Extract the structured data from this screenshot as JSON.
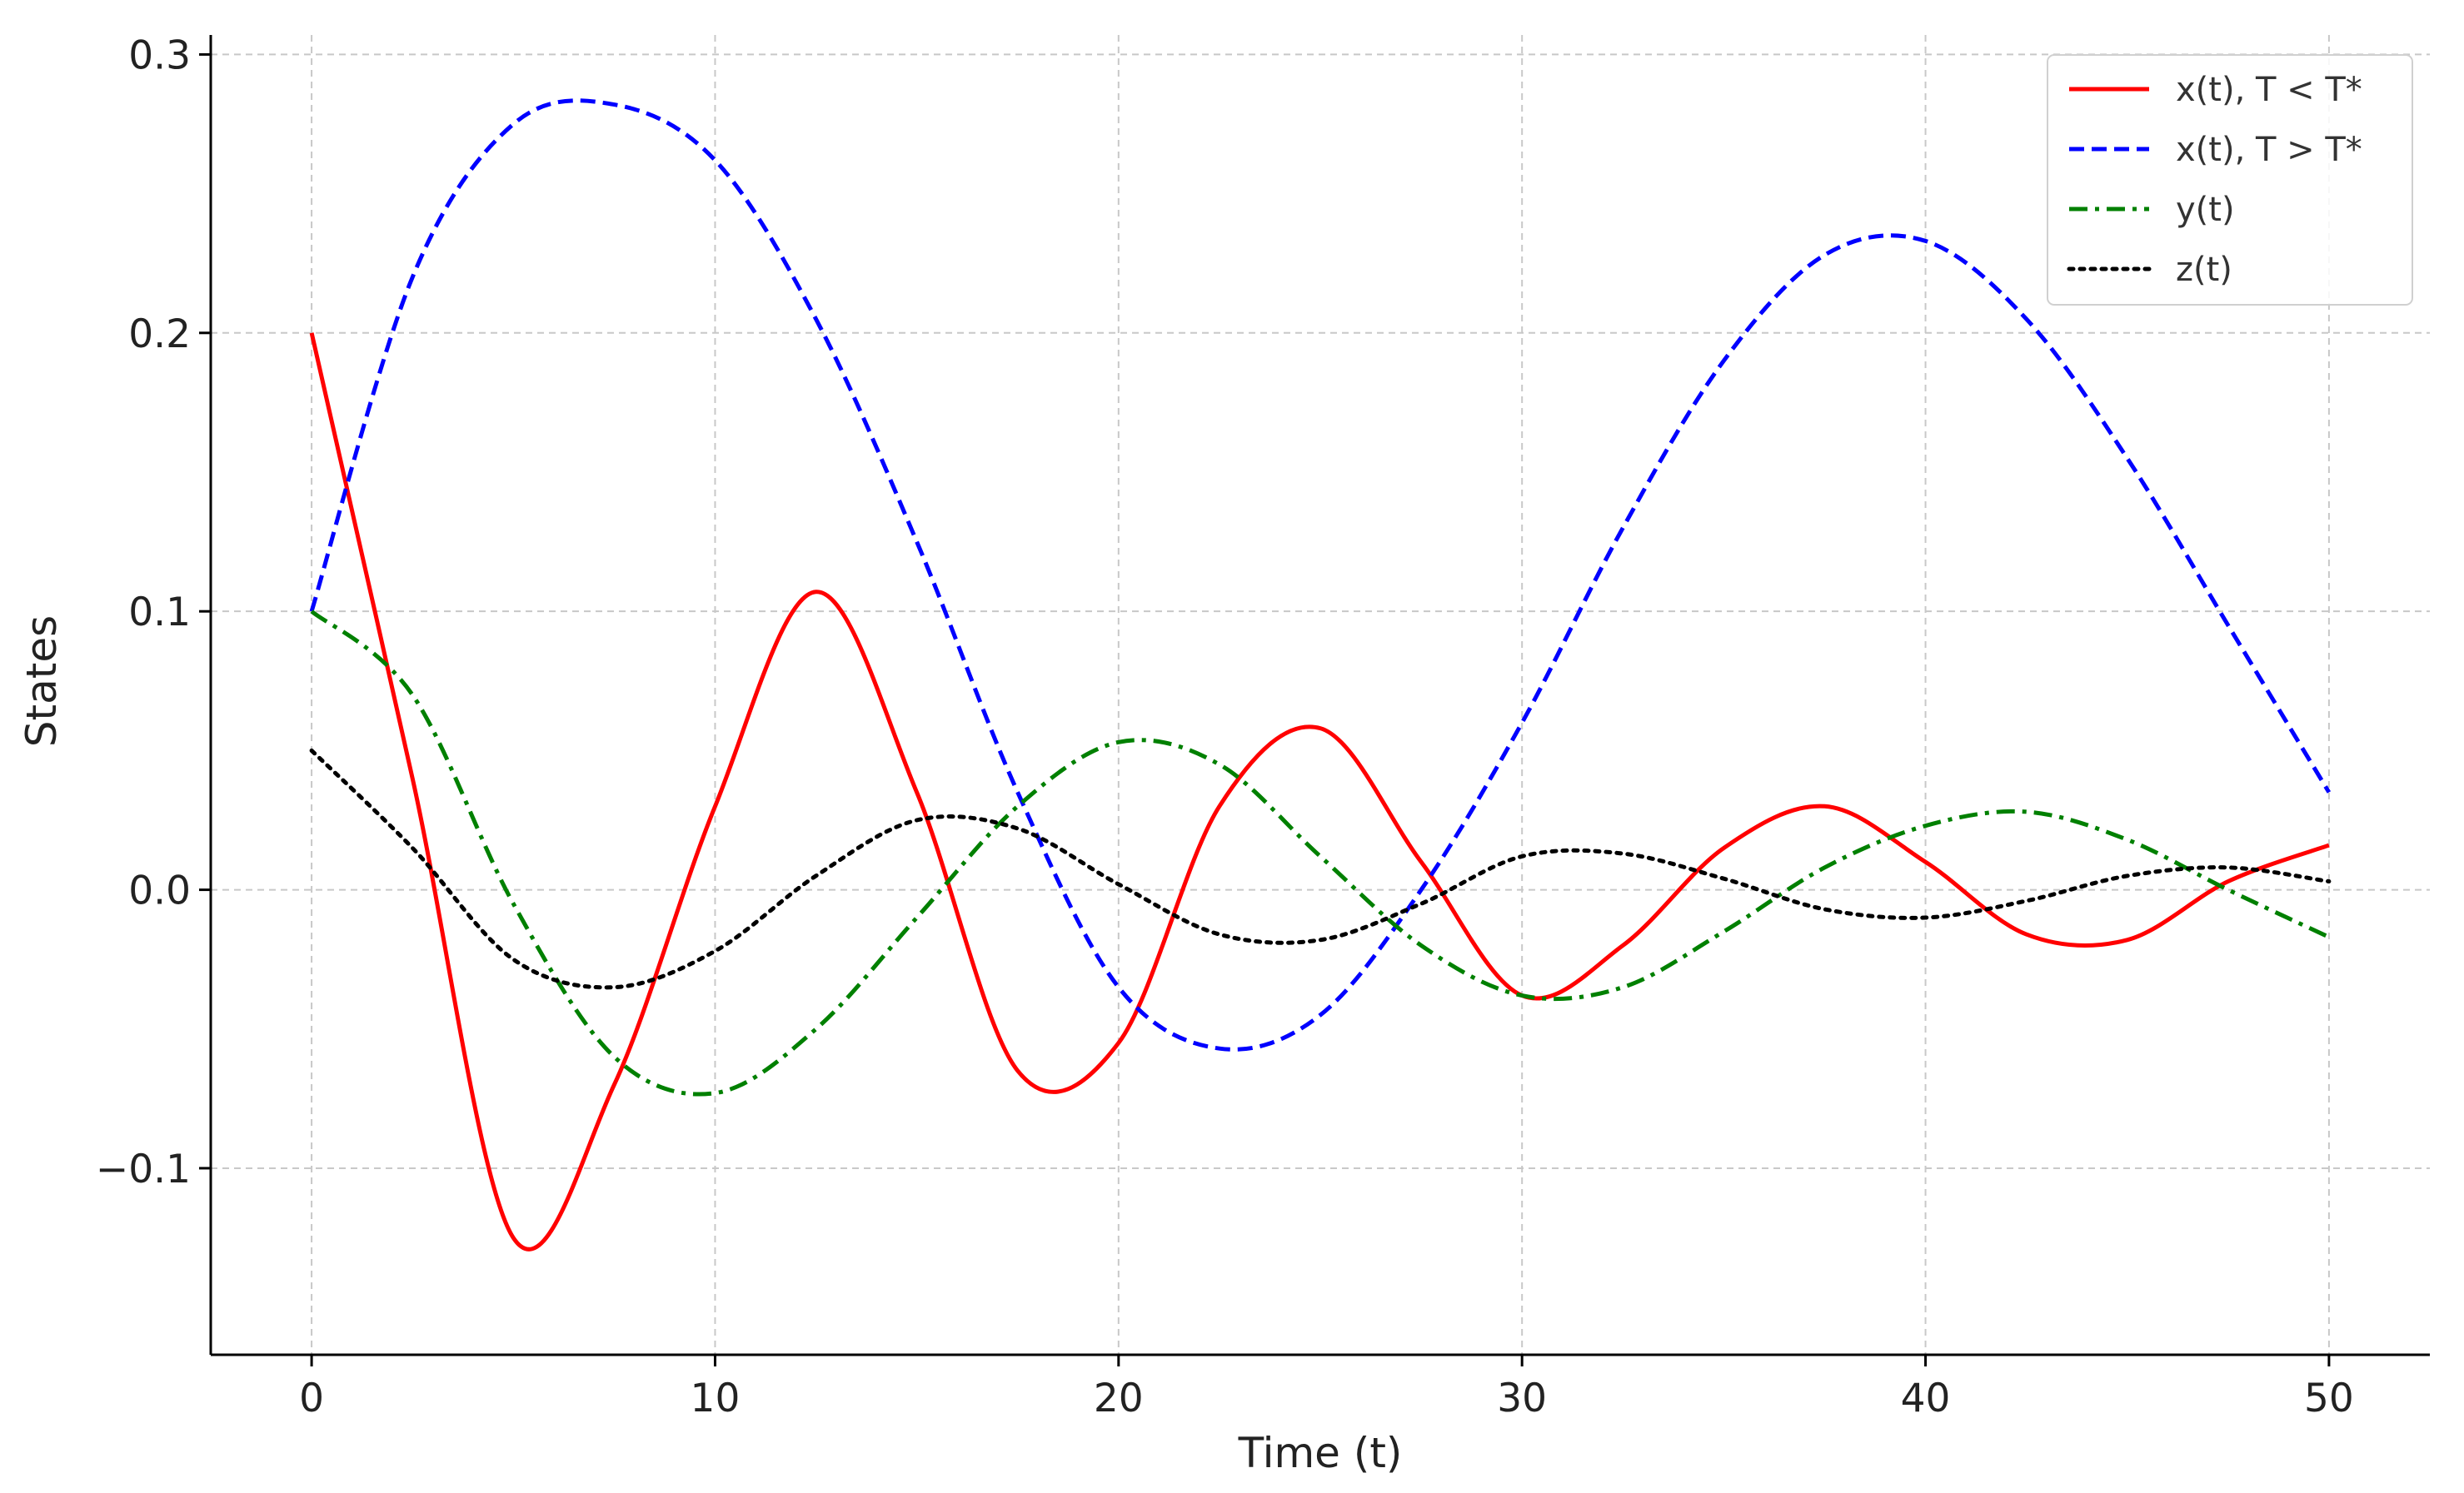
{
  "chart_data": {
    "type": "line",
    "xlabel": "Time (t)",
    "ylabel": "States",
    "xlim": [
      -2.5,
      52.5
    ],
    "ylim": [
      -0.167,
      0.307
    ],
    "xticks": [
      0,
      10,
      20,
      30,
      40,
      50
    ],
    "xtick_labels": [
      "0",
      "10",
      "20",
      "30",
      "40",
      "50"
    ],
    "yticks": [
      -0.1,
      0.0,
      0.1,
      0.2,
      0.3
    ],
    "ytick_labels": [
      "−0.1",
      "0.0",
      "0.1",
      "0.2",
      "0.3"
    ],
    "grid": true,
    "legend_position": "top-right",
    "x": [
      0,
      2.5,
      5,
      7.5,
      10,
      12.5,
      15,
      17.5,
      20,
      22.5,
      25,
      27.5,
      30,
      32.5,
      35,
      37.5,
      40,
      42.5,
      45,
      47.5,
      50
    ],
    "series": [
      {
        "name": "x(t), T < T*",
        "color": "#ff0000",
        "style": "solid",
        "values": [
          0.2,
          0.04,
          -0.125,
          -0.07,
          0.03,
          0.107,
          0.035,
          -0.065,
          -0.055,
          0.03,
          0.058,
          0.01,
          -0.038,
          -0.02,
          0.015,
          0.03,
          0.01,
          -0.016,
          -0.018,
          0.003,
          0.016
        ]
      },
      {
        "name": "x(t), T > T*",
        "color": "#0000ff",
        "style": "dashed",
        "values": [
          0.1,
          0.22,
          0.275,
          0.282,
          0.262,
          0.205,
          0.125,
          0.035,
          -0.035,
          -0.057,
          -0.045,
          0.0,
          0.06,
          0.13,
          0.19,
          0.228,
          0.233,
          0.205,
          0.155,
          0.095,
          0.035
        ]
      },
      {
        "name": "y(t)",
        "color": "#008000",
        "style": "dashdot",
        "values": [
          0.1,
          0.07,
          -0.005,
          -0.06,
          -0.073,
          -0.05,
          -0.01,
          0.03,
          0.053,
          0.045,
          0.012,
          -0.02,
          -0.038,
          -0.035,
          -0.015,
          0.008,
          0.023,
          0.028,
          0.018,
          0.0,
          -0.017
        ]
      },
      {
        "name": "z(t)",
        "color": "#000000",
        "style": "dotted",
        "values": [
          0.05,
          0.015,
          -0.025,
          -0.035,
          -0.022,
          0.005,
          0.025,
          0.022,
          0.002,
          -0.016,
          -0.018,
          -0.005,
          0.012,
          0.013,
          0.004,
          -0.007,
          -0.01,
          -0.004,
          0.005,
          0.008,
          0.003
        ]
      }
    ]
  }
}
